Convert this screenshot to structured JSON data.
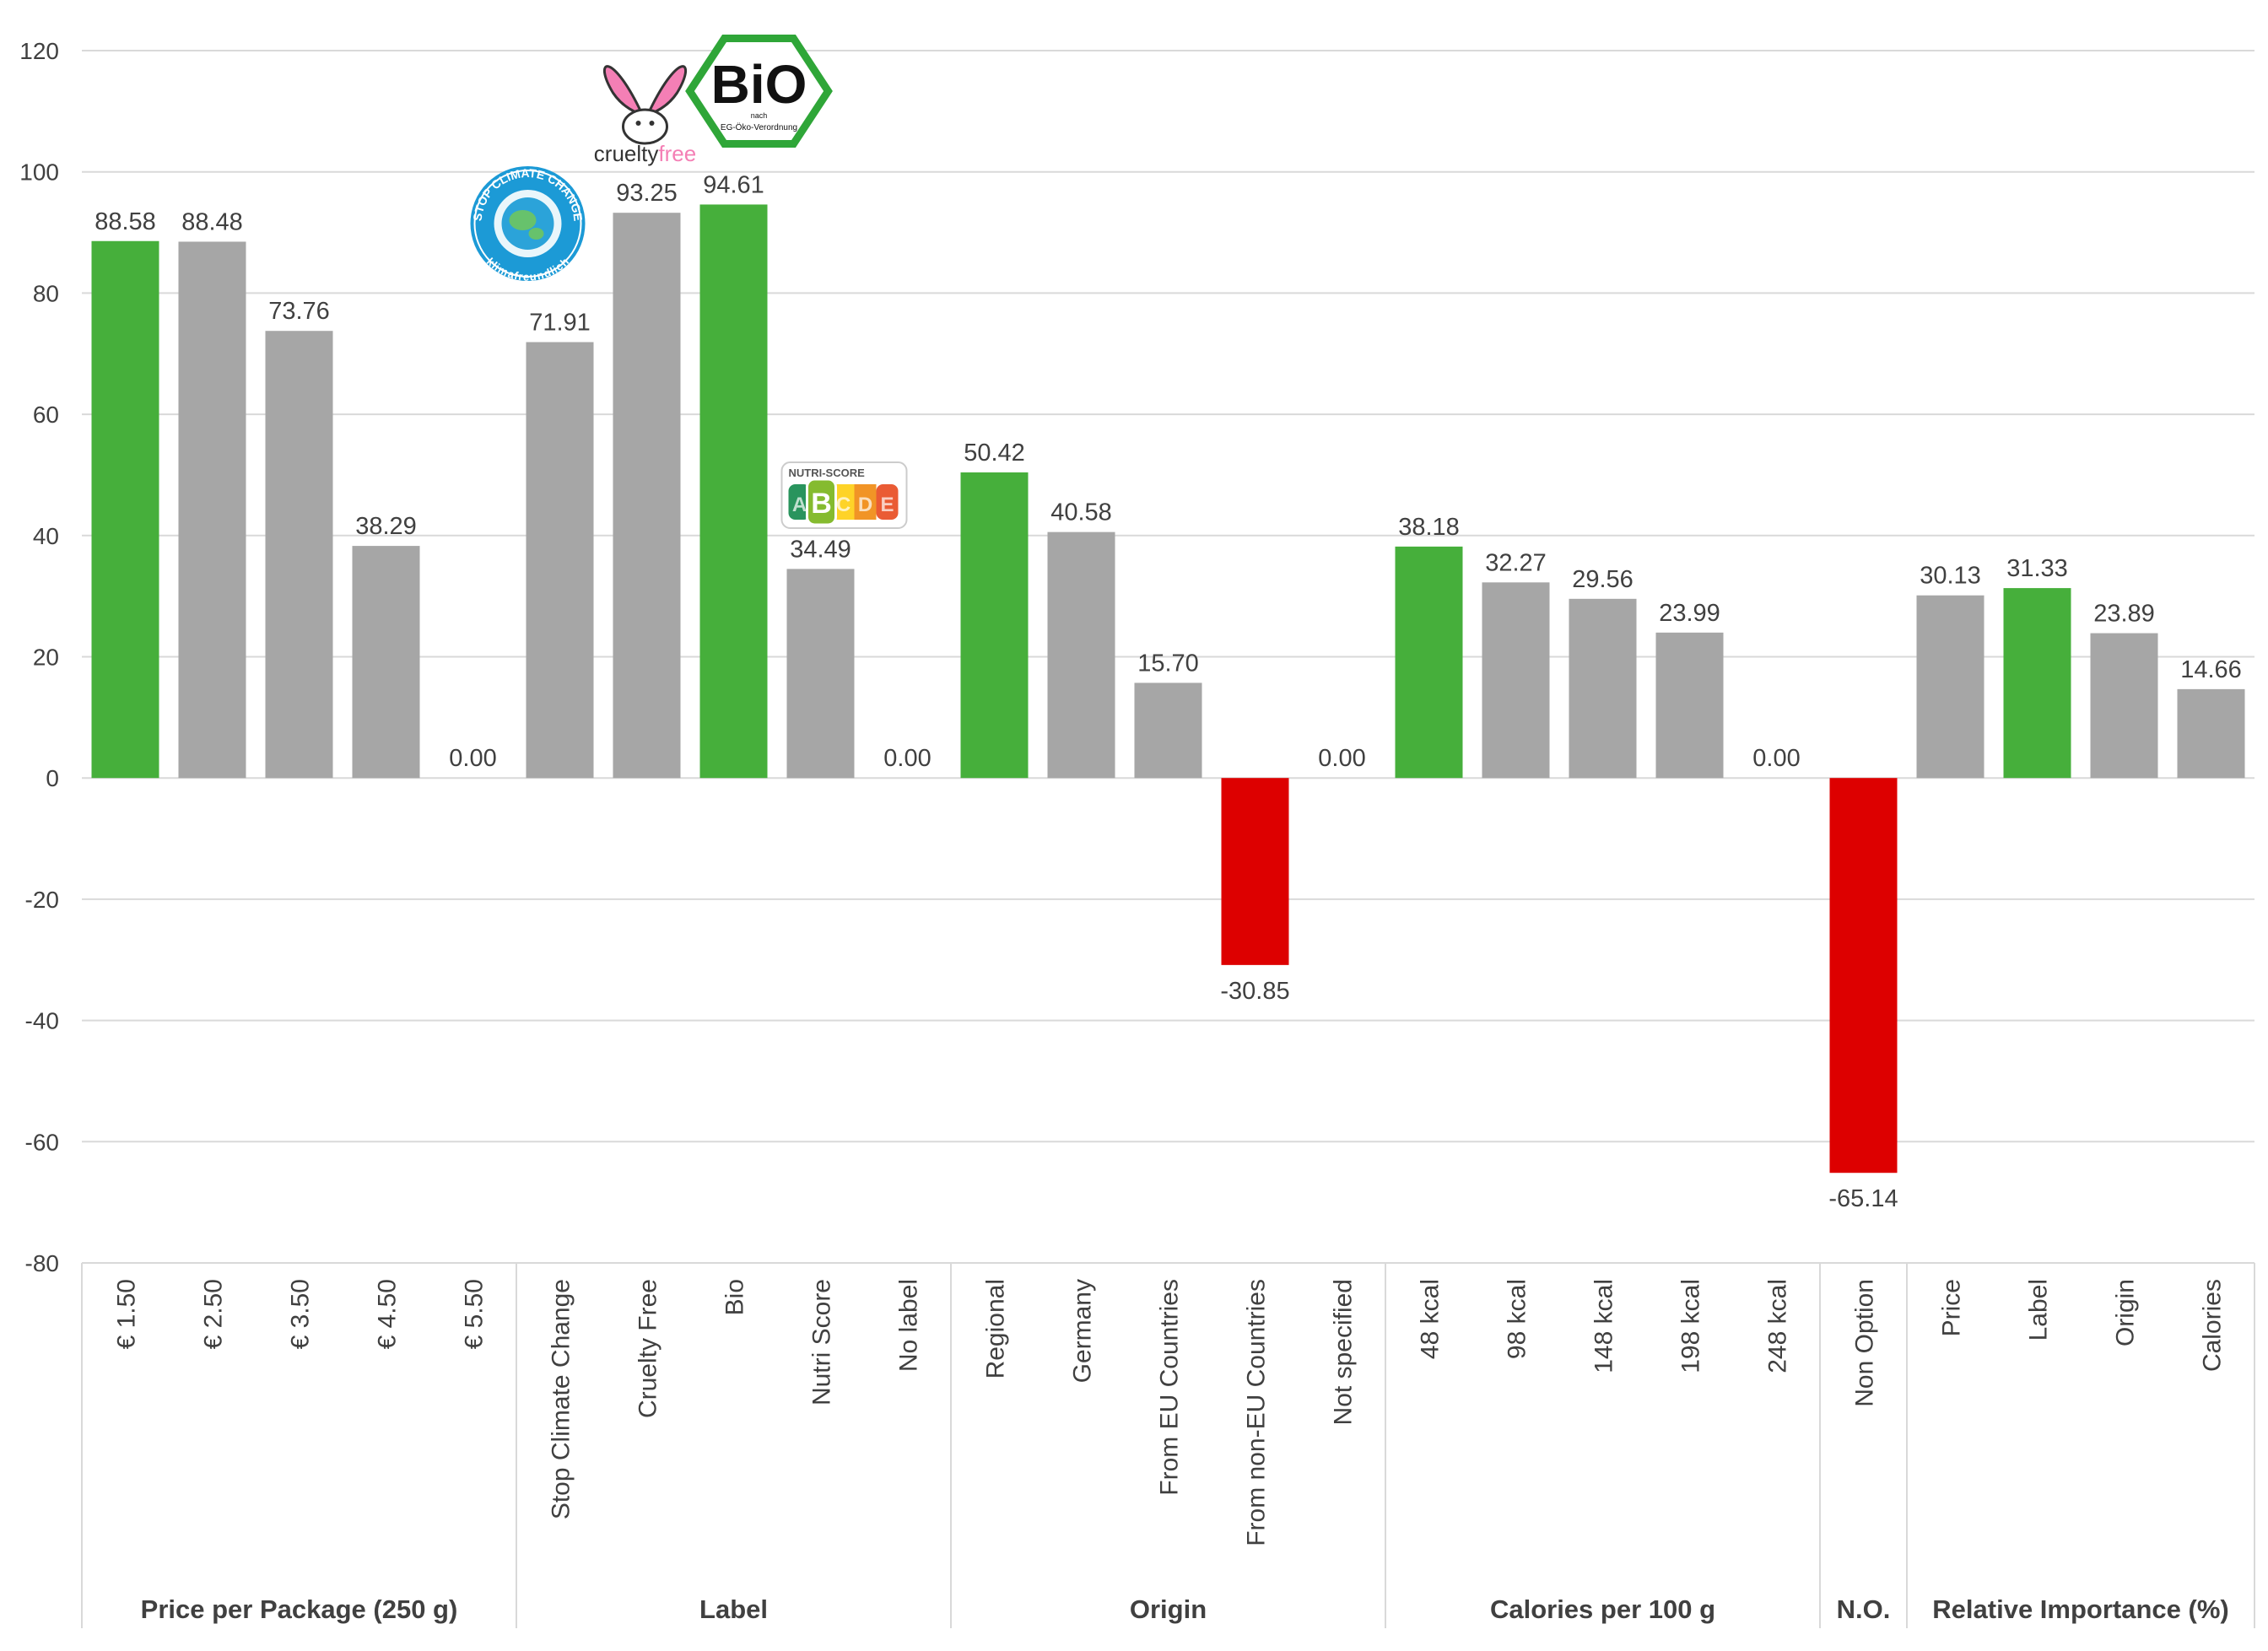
{
  "chart_data": {
    "type": "bar",
    "title": "",
    "xlabel": "",
    "ylabel": "",
    "ylim": [
      -80,
      120
    ],
    "yticks": [
      120,
      100,
      80,
      60,
      40,
      20,
      0,
      -20,
      -40,
      -60,
      -80
    ],
    "grid": true,
    "legend": "none",
    "colors": {
      "best": "#46AF3B",
      "neutral": "#A6A6A6",
      "worst": "#DD0000",
      "grid": "#D9D9D9",
      "text": "#404040"
    },
    "groups": [
      {
        "name": "Price per Package (250 g)",
        "categories": [
          {
            "label": "€ 1.50",
            "value": 88.58,
            "value_label": "88.58",
            "color": "best"
          },
          {
            "label": "€ 2.50",
            "value": 88.48,
            "value_label": "88.48",
            "color": "neutral"
          },
          {
            "label": "€ 3.50",
            "value": 73.76,
            "value_label": "73.76",
            "color": "neutral"
          },
          {
            "label": "€ 4.50",
            "value": 38.29,
            "value_label": "38.29",
            "color": "neutral"
          },
          {
            "label": "€ 5.50",
            "value": 0.0,
            "value_label": "0.00",
            "color": "neutral"
          }
        ]
      },
      {
        "name": "Label",
        "categories": [
          {
            "label": "Stop Climate Change",
            "value": 71.91,
            "value_label": "71.91",
            "color": "neutral"
          },
          {
            "label": "Cruelty Free",
            "value": 93.25,
            "value_label": "93.25",
            "color": "neutral"
          },
          {
            "label": "Bio",
            "value": 94.61,
            "value_label": "94.61",
            "color": "best"
          },
          {
            "label": "Nutri Score",
            "value": 34.49,
            "value_label": "34.49",
            "color": "neutral"
          },
          {
            "label": "No label",
            "value": 0.0,
            "value_label": "0.00",
            "color": "neutral"
          }
        ]
      },
      {
        "name": "Origin",
        "categories": [
          {
            "label": "Regional",
            "value": 50.42,
            "value_label": "50.42",
            "color": "best"
          },
          {
            "label": "Germany",
            "value": 40.58,
            "value_label": "40.58",
            "color": "neutral"
          },
          {
            "label": "From EU Countries",
            "value": 15.7,
            "value_label": "15.70",
            "color": "neutral"
          },
          {
            "label": "From non-EU Countries",
            "value": -30.85,
            "value_label": "-30.85",
            "color": "worst"
          },
          {
            "label": "Not specified",
            "value": 0.0,
            "value_label": "0.00",
            "color": "neutral"
          }
        ]
      },
      {
        "name": "Calories per 100 g",
        "categories": [
          {
            "label": "48 kcal",
            "value": 38.18,
            "value_label": "38.18",
            "color": "best"
          },
          {
            "label": "98 kcal",
            "value": 32.27,
            "value_label": "32.27",
            "color": "neutral"
          },
          {
            "label": "148 kcal",
            "value": 29.56,
            "value_label": "29.56",
            "color": "neutral"
          },
          {
            "label": "198 kcal",
            "value": 23.99,
            "value_label": "23.99",
            "color": "neutral"
          },
          {
            "label": "248 kcal",
            "value": 0.0,
            "value_label": "0.00",
            "color": "neutral"
          }
        ]
      },
      {
        "name": "N.O.",
        "categories": [
          {
            "label": "Non Option",
            "value": -65.14,
            "value_label": "-65.14",
            "color": "worst"
          }
        ]
      },
      {
        "name": "Relative Importance (%)",
        "categories": [
          {
            "label": "Price",
            "value": 30.13,
            "value_label": "30.13",
            "color": "neutral"
          },
          {
            "label": "Label",
            "value": 31.33,
            "value_label": "31.33",
            "color": "best"
          },
          {
            "label": "Origin",
            "value": 23.89,
            "value_label": "23.89",
            "color": "neutral"
          },
          {
            "label": "Calories",
            "value": 14.66,
            "value_label": "14.66",
            "color": "neutral"
          }
        ]
      }
    ],
    "logos": {
      "climate": {
        "ring_text": "STOP CLIMATE CHANGE",
        "sub_text": "klimafreundlich",
        "attached_to": "Stop Climate Change"
      },
      "cruelty": {
        "text_a": "cruelty",
        "text_b": "free",
        "attached_to": "Cruelty Free"
      },
      "bio": {
        "text": "BiO",
        "small_1": "nach",
        "small_2": "EG-Öko-Verordnung",
        "attached_to": "Bio"
      },
      "nutri": {
        "title": "NUTRI-SCORE",
        "letters": [
          "A",
          "B",
          "C",
          "D",
          "E"
        ],
        "attached_to": "Nutri Score"
      }
    }
  }
}
